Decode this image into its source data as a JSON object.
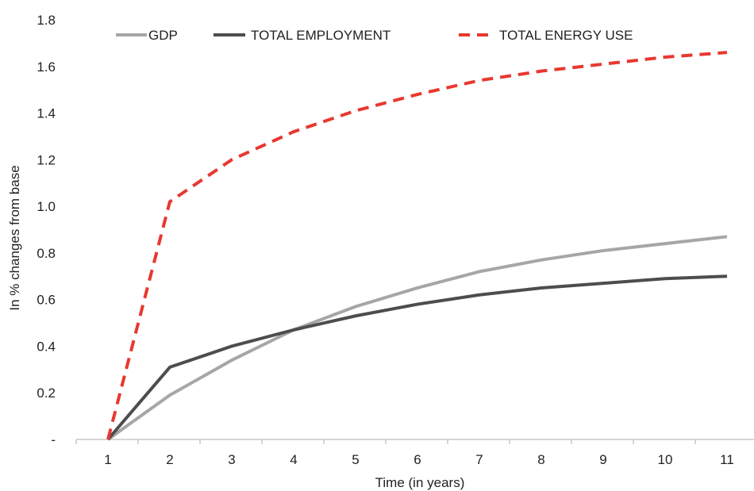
{
  "chart_data": {
    "type": "line",
    "title": "",
    "xlabel": "Time (in years)",
    "ylabel": "In % changes from base",
    "categories": [
      "1",
      "2",
      "3",
      "4",
      "5",
      "6",
      "7",
      "8",
      "9",
      "10",
      "11"
    ],
    "y_ticks": [
      "-",
      "0.2",
      "0.4",
      "0.6",
      "0.8",
      "1.0",
      "1.2",
      "1.4",
      "1.6",
      "1.8"
    ],
    "ylim": [
      0,
      1.8
    ],
    "grid": false,
    "legend_position": "top",
    "series": [
      {
        "name": "GDP",
        "color": "#a6a6a6",
        "dash": "solid",
        "values": [
          0,
          0.19,
          0.34,
          0.47,
          0.57,
          0.65,
          0.72,
          0.77,
          0.81,
          0.84,
          0.87
        ]
      },
      {
        "name": "TOTAL EMPLOYMENT",
        "color": "#4d4d4d",
        "dash": "solid",
        "values": [
          0,
          0.31,
          0.4,
          0.47,
          0.53,
          0.58,
          0.62,
          0.65,
          0.67,
          0.69,
          0.7
        ]
      },
      {
        "name": "TOTAL ENERGY USE",
        "color": "#e8382f",
        "dash": "dashed",
        "values": [
          0,
          1.02,
          1.2,
          1.32,
          1.41,
          1.48,
          1.54,
          1.58,
          1.61,
          1.64,
          1.66
        ]
      }
    ]
  }
}
